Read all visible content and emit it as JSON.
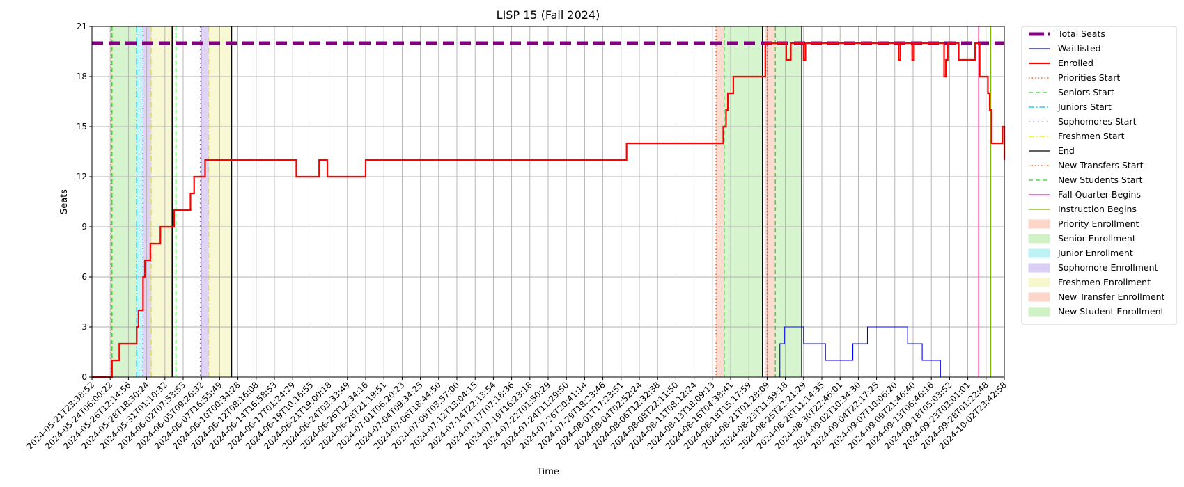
{
  "chart_data": {
    "type": "line",
    "title": "LISP 15 (Fall 2024)",
    "xlabel": "Time",
    "ylabel": "Seats",
    "ylim": [
      0,
      21
    ],
    "yticks": [
      0,
      3,
      6,
      9,
      12,
      15,
      18,
      21
    ],
    "grid": true,
    "legend_position": "outside-right",
    "x_range": [
      "2024-05-21T23:38:52",
      "2024-10-02T23:42:58"
    ],
    "xticks": [
      "2024-05-21T23:38:52",
      "2024-05-24T06:00:22",
      "2024-05-26T12:14:56",
      "2024-05-28T18:30:24",
      "2024-05-31T01:10:32",
      "2024-06-02T07:53:53",
      "2024-06-05T09:26:32",
      "2024-06-07T16:55:49",
      "2024-06-10T00:34:28",
      "2024-06-12T08:16:08",
      "2024-06-14T16:58:53",
      "2024-06-17T01:24:29",
      "2024-06-19T10:16:55",
      "2024-06-21T19:00:18",
      "2024-06-24T03:33:49",
      "2024-06-26T12:34:16",
      "2024-06-28T21:19:51",
      "2024-07-01T06:20:23",
      "2024-07-04T09:34:25",
      "2024-07-06T18:44:50",
      "2024-07-09T03:57:00",
      "2024-07-12T13:04:15",
      "2024-07-14T22:13:54",
      "2024-07-17T07:18:36",
      "2024-07-19T16:23:18",
      "2024-07-22T01:50:29",
      "2024-07-24T11:29:50",
      "2024-07-26T20:41:14",
      "2024-07-29T18:23:46",
      "2024-08-01T17:23:51",
      "2024-08-04T02:52:24",
      "2024-08-06T12:32:38",
      "2024-08-08T22:11:50",
      "2024-08-11T08:12:24",
      "2024-08-13T18:09:13",
      "2024-08-16T04:38:41",
      "2024-08-18T15:17:59",
      "2024-08-21T01:28:09",
      "2024-08-23T11:59:18",
      "2024-08-25T22:21:29",
      "2024-08-28T11:14:35",
      "2024-08-30T22:46:01",
      "2024-09-02T10:34:30",
      "2024-09-04T22:17:25",
      "2024-09-07T10:06:20",
      "2024-09-09T21:46:40",
      "2024-09-13T06:46:16",
      "2024-09-18T05:03:52",
      "2024-09-23T03:01:01",
      "2024-09-28T01:22:48",
      "2024-10-02T23:42:58"
    ],
    "series": [
      {
        "name": "Total Seats",
        "color": "#800080",
        "style": "dashed-thick",
        "points": [
          [
            0,
            20
          ],
          [
            50,
            20
          ]
        ]
      },
      {
        "name": "Waitlisted",
        "color": "#0000ff",
        "style": "solid-thin",
        "points": [
          [
            0,
            0
          ],
          [
            37.7,
            0
          ],
          [
            37.7,
            2
          ],
          [
            37.95,
            2
          ],
          [
            37.95,
            3
          ],
          [
            39.0,
            3
          ],
          [
            39.0,
            2
          ],
          [
            40.2,
            2
          ],
          [
            40.2,
            1
          ],
          [
            41.7,
            1
          ],
          [
            41.7,
            2
          ],
          [
            42.5,
            2
          ],
          [
            42.5,
            3
          ],
          [
            44.7,
            3
          ],
          [
            44.7,
            2
          ],
          [
            45.5,
            2
          ],
          [
            45.5,
            1
          ],
          [
            46.5,
            1
          ],
          [
            46.5,
            0
          ],
          [
            50,
            0
          ]
        ]
      },
      {
        "name": "Enrolled",
        "color": "#ff0000",
        "style": "solid-thick",
        "points": [
          [
            0,
            0
          ],
          [
            1.1,
            0
          ],
          [
            1.1,
            1
          ],
          [
            1.5,
            1
          ],
          [
            1.5,
            2
          ],
          [
            2.45,
            2
          ],
          [
            2.45,
            3
          ],
          [
            2.55,
            3
          ],
          [
            2.55,
            4
          ],
          [
            2.8,
            4
          ],
          [
            2.8,
            6
          ],
          [
            2.9,
            6
          ],
          [
            2.9,
            7
          ],
          [
            3.2,
            7
          ],
          [
            3.2,
            8
          ],
          [
            3.75,
            8
          ],
          [
            3.75,
            9
          ],
          [
            4.5,
            9
          ],
          [
            4.5,
            10
          ],
          [
            5.4,
            10
          ],
          [
            5.4,
            11
          ],
          [
            5.6,
            11
          ],
          [
            5.6,
            12
          ],
          [
            6.2,
            12
          ],
          [
            6.2,
            13
          ],
          [
            11.2,
            13
          ],
          [
            11.2,
            12
          ],
          [
            12.45,
            12
          ],
          [
            12.45,
            13
          ],
          [
            12.9,
            13
          ],
          [
            12.9,
            12
          ],
          [
            15.0,
            12
          ],
          [
            15.0,
            13
          ],
          [
            29.3,
            13
          ],
          [
            29.3,
            14
          ],
          [
            34.6,
            14
          ],
          [
            34.6,
            15
          ],
          [
            34.75,
            15
          ],
          [
            34.75,
            16
          ],
          [
            34.85,
            16
          ],
          [
            34.85,
            17
          ],
          [
            35.15,
            17
          ],
          [
            35.15,
            18
          ],
          [
            36.9,
            18
          ],
          [
            36.9,
            20
          ],
          [
            38.05,
            20
          ],
          [
            38.05,
            19
          ],
          [
            38.3,
            19
          ],
          [
            38.3,
            20
          ],
          [
            39.0,
            20
          ],
          [
            39.0,
            19
          ],
          [
            39.1,
            19
          ],
          [
            39.1,
            20
          ],
          [
            44.2,
            20
          ],
          [
            44.2,
            19
          ],
          [
            44.3,
            19
          ],
          [
            44.3,
            20
          ],
          [
            44.95,
            20
          ],
          [
            44.95,
            19
          ],
          [
            45.05,
            19
          ],
          [
            45.05,
            20
          ],
          [
            46.7,
            20
          ],
          [
            46.7,
            18
          ],
          [
            46.8,
            18
          ],
          [
            46.8,
            19
          ],
          [
            46.9,
            19
          ],
          [
            46.9,
            20
          ],
          [
            47.5,
            20
          ],
          [
            47.5,
            19
          ],
          [
            48.4,
            19
          ],
          [
            48.4,
            20
          ],
          [
            48.65,
            20
          ],
          [
            48.65,
            18
          ],
          [
            49.1,
            18
          ],
          [
            49.1,
            17
          ],
          [
            49.2,
            17
          ],
          [
            49.2,
            16
          ],
          [
            49.3,
            16
          ],
          [
            49.3,
            14
          ],
          [
            49.9,
            14
          ],
          [
            49.9,
            15
          ],
          [
            50.0,
            15
          ],
          [
            50.0,
            14
          ],
          [
            50.6,
            14
          ],
          [
            50.6,
            15
          ],
          [
            51.1,
            15
          ],
          [
            51.1,
            14
          ],
          [
            51.4,
            14
          ],
          [
            51.4,
            13
          ],
          [
            51.6,
            13
          ],
          [
            51.6,
            14
          ],
          [
            51.75,
            14
          ],
          [
            51.75,
            15
          ],
          [
            52.0,
            15
          ],
          [
            52.0,
            14
          ]
        ]
      }
    ],
    "event_lines": [
      {
        "name": "Priorities Start",
        "color": "#ff4500",
        "style": "dotted",
        "x": [
          1.05,
          34.2
        ]
      },
      {
        "name": "Seniors Start",
        "color": "#32cd32",
        "style": "dashed",
        "x": [
          1.1,
          4.6,
          34.65
        ]
      },
      {
        "name": "Juniors Start",
        "color": "#00bfff",
        "style": "dashdot",
        "x": [
          2.45
        ]
      },
      {
        "name": "Sophomores Start",
        "color": "#6a0dad",
        "style": "dotted-loose",
        "x": [
          2.8,
          5.95
        ]
      },
      {
        "name": "Freshmen Start",
        "color": "#e6e600",
        "style": "dashdot",
        "x": [
          3.25,
          6.4
        ]
      },
      {
        "name": "End",
        "color": "#000000",
        "style": "solid",
        "x": [
          4.4,
          7.65,
          36.75,
          38.9
        ]
      },
      {
        "name": "New Transfers Start",
        "color": "#ff4500",
        "style": "dotted",
        "x": [
          37.0
        ]
      },
      {
        "name": "New Students Start",
        "color": "#32cd32",
        "style": "dashed",
        "x": [
          37.45
        ]
      },
      {
        "name": "Fall Quarter Begins",
        "color": "#ff1493",
        "style": "solid",
        "x": [
          48.6
        ]
      },
      {
        "name": "Instruction Begins",
        "color": "#7cbb00",
        "style": "solid",
        "x": [
          49.25
        ]
      }
    ],
    "bands": [
      {
        "name": "Priority Enrollment",
        "color": "#fbd0c0",
        "from": [
          1.05,
          34.2
        ],
        "to": [
          1.1,
          34.65
        ]
      },
      {
        "name": "Senior Enrollment",
        "color": "#c8f0bc",
        "from": [
          1.1,
          4.6,
          34.65
        ],
        "to": [
          2.45,
          4.6,
          36.75
        ]
      },
      {
        "name": "Junior Enrollment",
        "color": "#b3f1f5",
        "from": [
          2.45
        ],
        "to": [
          2.8
        ]
      },
      {
        "name": "Sophomore Enrollment",
        "color": "#d5c6f3",
        "from": [
          2.8,
          5.95
        ],
        "to": [
          3.25,
          6.4
        ]
      },
      {
        "name": "Freshmen Enrollment",
        "color": "#f6f6c6",
        "from": [
          3.25,
          6.4
        ],
        "to": [
          4.4,
          7.65
        ]
      },
      {
        "name": "New Transfer Enrollment",
        "color": "#fbd0c0",
        "from": [
          36.9
        ],
        "to": [
          37.45
        ]
      },
      {
        "name": "New Student Enrollment",
        "color": "#c8f0bc",
        "from": [
          37.45
        ],
        "to": [
          38.9
        ]
      }
    ]
  }
}
